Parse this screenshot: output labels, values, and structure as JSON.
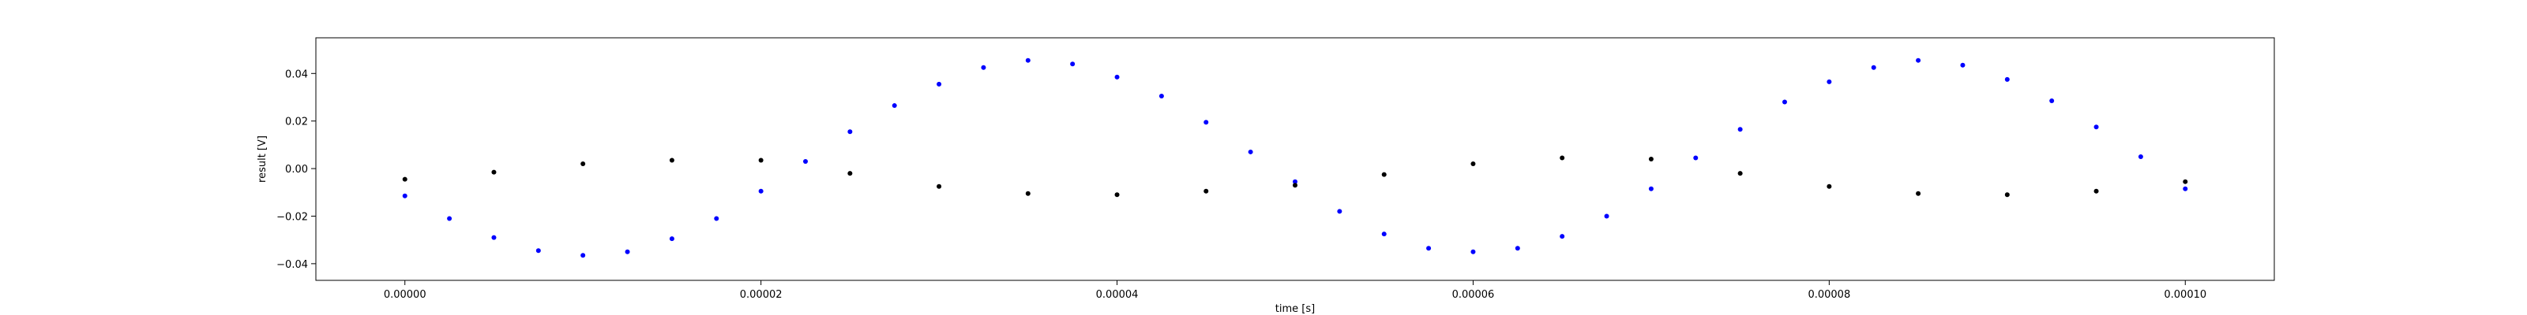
{
  "chart_data": {
    "type": "scatter",
    "title": "",
    "xlabel": "time [s]",
    "ylabel": "result [V]",
    "xlim": [
      -5e-06,
      0.000105
    ],
    "ylim": [
      -0.047,
      0.055
    ],
    "grid": false,
    "legend": "none",
    "x_ticks": [
      0.0,
      2e-05,
      4e-05,
      6e-05,
      8e-05,
      0.0001
    ],
    "x_tick_labels": [
      "0.00000",
      "0.00002",
      "0.00004",
      "0.00006",
      "0.00008",
      "0.00010"
    ],
    "y_ticks": [
      -0.04,
      -0.02,
      0.0,
      0.02,
      0.04
    ],
    "y_tick_labels": [
      "−0.04",
      "−0.02",
      "0.00",
      "0.02",
      "0.04"
    ],
    "series": [
      {
        "color": "#0000ff",
        "marker": "dot",
        "x": [
          0.0,
          2.5e-06,
          5e-06,
          7.5e-06,
          1e-05,
          1.25e-05,
          1.5e-05,
          1.75e-05,
          2e-05,
          2.25e-05,
          2.5e-05,
          2.75e-05,
          3e-05,
          3.25e-05,
          3.5e-05,
          3.75e-05,
          4e-05,
          4.25e-05,
          4.5e-05,
          4.75e-05,
          5e-05,
          5.25e-05,
          5.5e-05,
          5.75e-05,
          6e-05,
          6.25e-05,
          6.5e-05,
          6.75e-05,
          7e-05,
          7.25e-05,
          7.5e-05,
          7.75e-05,
          8e-05,
          8.25e-05,
          8.5e-05,
          8.75e-05,
          9e-05,
          9.25e-05,
          9.5e-05,
          9.75e-05,
          0.0001
        ],
        "y": [
          -0.0115,
          -0.021,
          -0.029,
          -0.0345,
          -0.0365,
          -0.035,
          -0.0295,
          -0.021,
          -0.0095,
          0.003,
          0.0155,
          0.0265,
          0.0355,
          0.0425,
          0.0455,
          0.044,
          0.0385,
          0.0305,
          0.0195,
          0.007,
          -0.0055,
          -0.018,
          -0.0275,
          -0.0335,
          -0.035,
          -0.0335,
          -0.0285,
          -0.02,
          -0.0085,
          0.0045,
          0.0165,
          0.028,
          0.0365,
          0.0425,
          0.0455,
          0.0435,
          0.0375,
          0.0285,
          0.0175,
          0.005,
          -0.0085
        ]
      },
      {
        "color": "#000000",
        "marker": "dot",
        "x": [
          0.0,
          5e-06,
          1e-05,
          1.5e-05,
          2e-05,
          2.5e-05,
          3e-05,
          3.5e-05,
          4e-05,
          4.5e-05,
          5e-05,
          5.5e-05,
          6e-05,
          6.5e-05,
          7e-05,
          7.5e-05,
          8e-05,
          8.5e-05,
          9e-05,
          9.5e-05,
          0.0001
        ],
        "y": [
          -0.0045,
          -0.0015,
          0.002,
          0.0035,
          0.0035,
          -0.002,
          -0.0075,
          -0.0105,
          -0.011,
          -0.0095,
          -0.007,
          -0.0025,
          0.002,
          0.0045,
          0.004,
          -0.002,
          -0.0075,
          -0.0105,
          -0.011,
          -0.0095,
          -0.0055
        ]
      }
    ]
  }
}
